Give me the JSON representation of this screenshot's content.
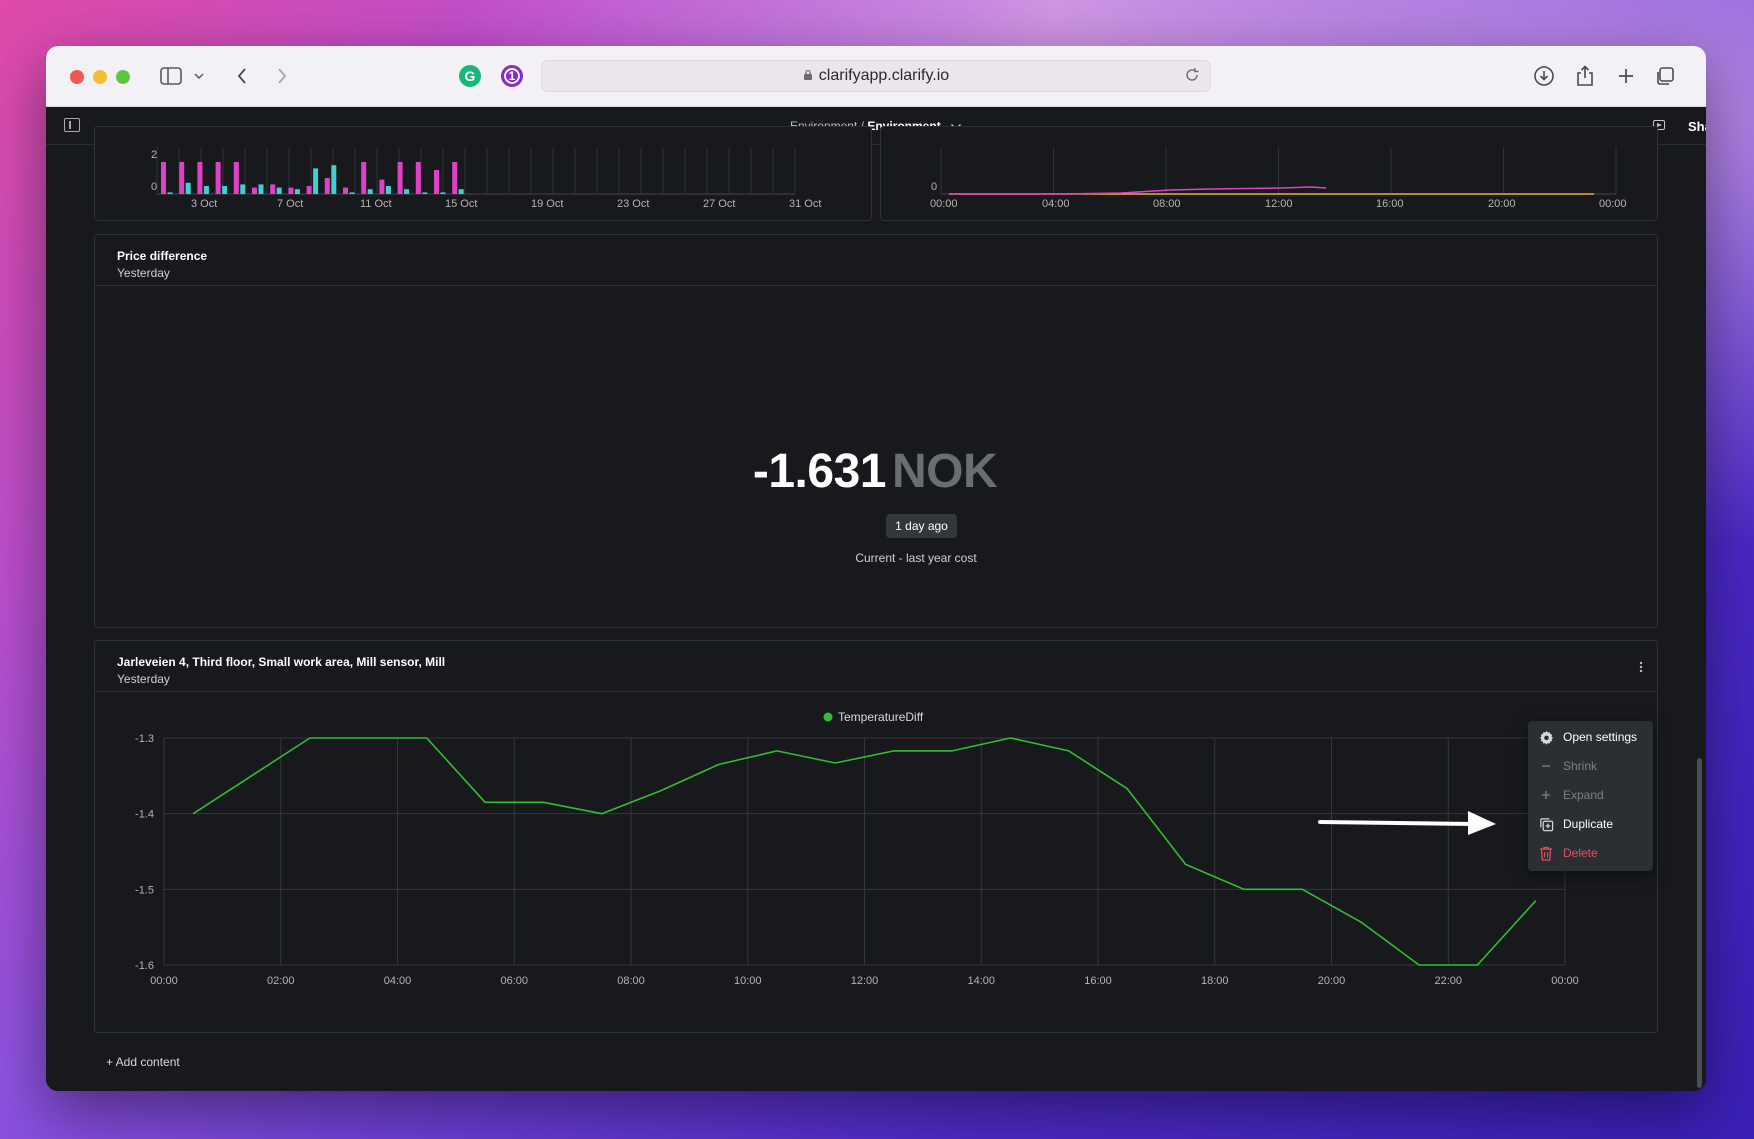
{
  "browser": {
    "url": "clarifyapp.clarify.io"
  },
  "header": {
    "breadcrumb_parent": "Environment",
    "breadcrumb_sep": " / ",
    "breadcrumb_current": "Environment",
    "share_label": "Share"
  },
  "top_left_chart": {
    "y_ticks": [
      "2",
      "0"
    ],
    "x_ticks": [
      "3 Oct",
      "7 Oct",
      "11 Oct",
      "15 Oct",
      "19 Oct",
      "23 Oct",
      "27 Oct",
      "31 Oct"
    ],
    "colors": {
      "series_a": "#e040c8",
      "series_b": "#3fd0d0"
    }
  },
  "top_right_chart": {
    "y_ticks": [
      "0"
    ],
    "x_ticks": [
      "00:00",
      "04:00",
      "08:00",
      "12:00",
      "16:00",
      "20:00",
      "00:00"
    ],
    "colors": {
      "series_a": "#e040c8",
      "series_b": "#e8b030"
    }
  },
  "price_card": {
    "title": "Price difference",
    "subtitle": "Yesterday",
    "value": "-1.631",
    "unit": "NOK",
    "badge": "1 day ago",
    "label": "Current - last year cost"
  },
  "sensor_card": {
    "title": "Jarleveien 4, Third floor, Small work area, Mill sensor, Mill",
    "subtitle": "Yesterday"
  },
  "context_menu": {
    "items": [
      {
        "label": "Open settings",
        "icon": "gear-icon",
        "state": "enabled"
      },
      {
        "label": "Shrink",
        "icon": "minus-icon",
        "state": "disabled"
      },
      {
        "label": "Expand",
        "icon": "plus-icon",
        "state": "disabled"
      },
      {
        "label": "Duplicate",
        "icon": "duplicate-icon",
        "state": "enabled"
      },
      {
        "label": "Delete",
        "icon": "trash-icon",
        "state": "danger"
      }
    ]
  },
  "add_content_label": "+ Add content",
  "chart_data": {
    "type": "line",
    "title": "",
    "xlabel": "",
    "ylabel": "",
    "legend": "top-center",
    "grid": true,
    "ylim": [
      -1.6,
      -1.3
    ],
    "x_ticks": [
      "00:00",
      "02:00",
      "04:00",
      "06:00",
      "08:00",
      "10:00",
      "12:00",
      "14:00",
      "16:00",
      "18:00",
      "20:00",
      "22:00",
      "00:00"
    ],
    "y_ticks": [
      "-1.3",
      "-1.4",
      "-1.5",
      "-1.6"
    ],
    "series": [
      {
        "name": "TemperatureDiff",
        "color": "#2fbf2f",
        "x": [
          "00:30",
          "01:30",
          "02:30",
          "03:30",
          "04:30",
          "05:30",
          "06:30",
          "07:30",
          "08:30",
          "09:30",
          "10:30",
          "11:30",
          "12:30",
          "13:30",
          "14:30",
          "15:30",
          "16:30",
          "17:30",
          "18:30",
          "19:30",
          "20:30",
          "21:30",
          "22:30",
          "23:30"
        ],
        "values": [
          -1.4,
          -1.35,
          -1.3,
          -1.3,
          -1.3,
          -1.385,
          -1.385,
          -1.4,
          -1.37,
          -1.335,
          -1.317,
          -1.333,
          -1.317,
          -1.317,
          -1.3,
          -1.317,
          -1.367,
          -1.467,
          -1.5,
          -1.5,
          -1.543,
          -1.6,
          -1.6,
          -1.515
        ]
      }
    ]
  }
}
